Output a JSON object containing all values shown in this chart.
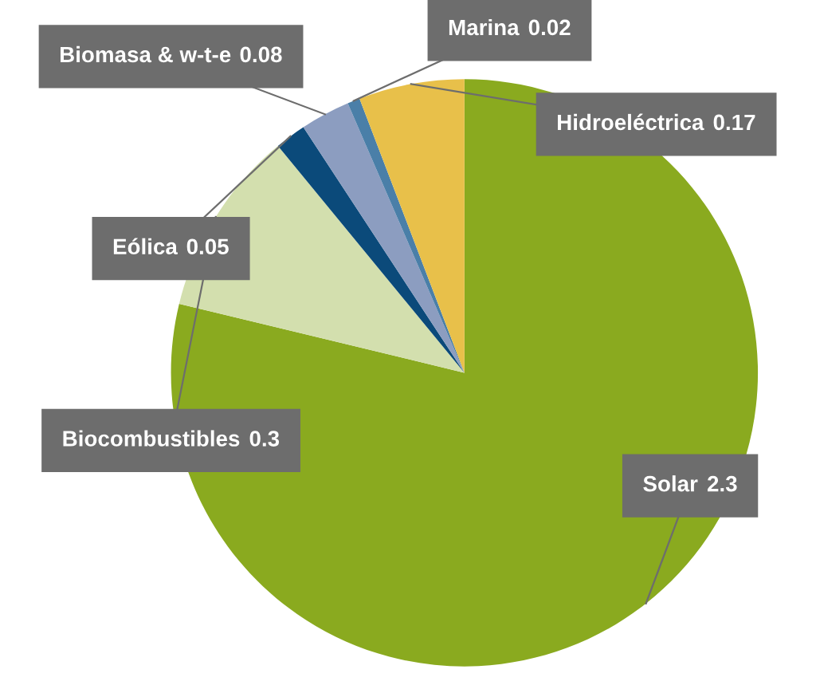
{
  "chart_data": {
    "type": "pie",
    "categories": [
      "Solar",
      "Biocombustibles",
      "Eólica",
      "Biomasa & w-t-e",
      "Marina",
      "Hidroeléctrica"
    ],
    "values": [
      2.3,
      0.3,
      0.05,
      0.08,
      0.02,
      0.17
    ],
    "data_labels": true,
    "colors": [
      "#8aaa1f",
      "#d3dfae",
      "#0b4a7a",
      "#8c9dc0",
      "#4a7fa8",
      "#e8c04a"
    ]
  }
}
